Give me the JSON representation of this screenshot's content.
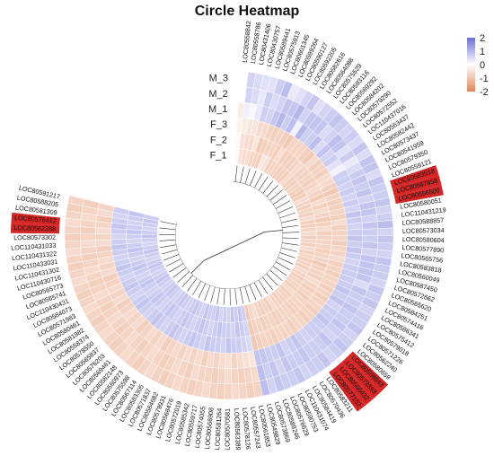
{
  "chart_data": {
    "type": "heatmap",
    "layout": "circular",
    "title": "Circle Heatmap",
    "rows": [
      "M_3",
      "M_2",
      "M_1",
      "F_3",
      "F_2",
      "F_1"
    ],
    "legend": {
      "ticks": [
        "2",
        "1",
        "0",
        "-1",
        "-2"
      ],
      "min": -2,
      "max": 2,
      "color_low": "#e0865a",
      "color_mid": "#ffffff",
      "color_high": "#6b6fd6",
      "placement": "top-right"
    },
    "highlight_color": "#cc0000",
    "columns": [
      {
        "label": "LOC80558842",
        "values": [
          0.0,
          0.0,
          -0.3,
          -0.2,
          -0.1,
          -0.1
        ]
      },
      {
        "label": "LOC80558786",
        "values": [
          0.6,
          0.6,
          0.2,
          -0.3,
          -0.5,
          -0.5
        ]
      },
      {
        "label": "LOC80431406",
        "values": [
          0.5,
          0.5,
          0.1,
          -0.4,
          -0.6,
          -0.6
        ]
      },
      {
        "label": "LOC80430757",
        "values": [
          0.4,
          0.3,
          0.3,
          -0.4,
          -0.6,
          -0.6
        ]
      },
      {
        "label": "LOC80589441",
        "values": [
          0.4,
          0.7,
          0.7,
          -0.6,
          -0.4,
          -0.7
        ]
      },
      {
        "label": "LOC80575813",
        "values": [
          0.7,
          0.5,
          0.6,
          -0.6,
          -0.9,
          -0.7
        ]
      },
      {
        "label": "LOC80601345",
        "values": [
          0.9,
          0.6,
          0.8,
          -0.7,
          -0.8,
          -0.8
        ]
      },
      {
        "label": "LOC80599264",
        "values": [
          0.3,
          0.8,
          1.0,
          -0.8,
          -0.7,
          -0.4
        ]
      },
      {
        "label": "LOC80590127",
        "values": [
          0.4,
          0.8,
          0.7,
          -0.7,
          -0.7,
          -0.5
        ]
      },
      {
        "label": "LOC80592205",
        "values": [
          0.6,
          1.0,
          0.9,
          -0.8,
          -0.8,
          -0.8
        ]
      },
      {
        "label": "LOC80582616",
        "values": [
          0.8,
          0.6,
          0.2,
          -0.9,
          -0.6,
          -0.7
        ]
      },
      {
        "label": "LOC80564088",
        "values": [
          0.4,
          0.8,
          1.0,
          -0.7,
          -0.8,
          -0.7
        ]
      },
      {
        "label": "LOC80575529",
        "values": [
          0.6,
          0.8,
          0.7,
          -0.7,
          -0.8,
          -0.8
        ]
      },
      {
        "label": "LOC80593116",
        "values": [
          0.7,
          0.8,
          0.7,
          -0.7,
          -0.8,
          -0.8
        ]
      },
      {
        "label": "LOC80569292",
        "values": [
          0.8,
          0.5,
          0.9,
          -0.8,
          -0.7,
          -0.8
        ]
      },
      {
        "label": "LOC80584202",
        "values": [
          0.7,
          0.6,
          0.5,
          -0.9,
          -0.6,
          -0.6
        ]
      },
      {
        "label": "LOC80579290",
        "values": [
          0.6,
          0.9,
          0.8,
          -0.6,
          -0.7,
          -0.8
        ]
      },
      {
        "label": "LOC80572552",
        "values": [
          0.7,
          0.8,
          0.6,
          -0.8,
          -0.7,
          -0.8
        ]
      },
      {
        "label": "LOC110437016",
        "values": [
          0.5,
          0.4,
          0.7,
          -0.7,
          -0.7,
          -0.7
        ]
      },
      {
        "label": "LOC80563437",
        "values": [
          0.8,
          0.7,
          0.4,
          -0.8,
          -0.8,
          -0.8
        ]
      },
      {
        "label": "LOC80582442",
        "values": [
          0.5,
          0.3,
          0.2,
          -0.6,
          -0.7,
          -0.9
        ]
      },
      {
        "label": "LOC80573437",
        "values": [
          0.8,
          0.5,
          0.7,
          -0.6,
          -0.6,
          -0.8
        ]
      },
      {
        "label": "LOC80541959",
        "values": [
          0.8,
          0.7,
          0.7,
          -0.8,
          -0.7,
          -0.6
        ]
      },
      {
        "label": "LOC80579350",
        "values": [
          0.5,
          0.8,
          0.6,
          -0.9,
          -0.9,
          -0.7
        ]
      },
      {
        "label": "LOC80559121",
        "values": [
          0.8,
          0.7,
          0.7,
          -0.7,
          -0.6,
          -0.8
        ]
      },
      {
        "label": "LOC80583518",
        "values": [
          0.7,
          0.8,
          0.6,
          -0.8,
          -0.8,
          -0.7
        ],
        "highlight": true
      },
      {
        "label": "LOC80567658",
        "values": [
          0.7,
          0.6,
          0.7,
          -0.8,
          -0.6,
          -0.8
        ],
        "highlight": true
      },
      {
        "label": "LOC80556500",
        "values": [
          0.8,
          0.8,
          0.6,
          -0.7,
          -0.7,
          -0.6
        ],
        "highlight": true
      },
      {
        "label": "LOC80580051",
        "values": [
          0.6,
          0.8,
          0.8,
          -0.8,
          -0.9,
          -0.8
        ]
      },
      {
        "label": "LOC110431219",
        "values": [
          0.7,
          0.6,
          0.7,
          -0.6,
          -0.8,
          -0.8
        ]
      },
      {
        "label": "LOC80588857",
        "values": [
          0.9,
          0.8,
          0.6,
          -0.8,
          -0.6,
          -0.7
        ]
      },
      {
        "label": "LOC80573034",
        "values": [
          0.6,
          0.7,
          0.7,
          -0.7,
          -0.8,
          -0.6
        ]
      },
      {
        "label": "LOC80580604",
        "values": [
          0.8,
          0.7,
          0.8,
          -0.7,
          -0.7,
          -0.8
        ]
      },
      {
        "label": "LOC80577890",
        "values": [
          0.7,
          0.8,
          0.7,
          -0.8,
          -0.7,
          -0.7
        ]
      },
      {
        "label": "LOC80565756",
        "values": [
          0.6,
          0.6,
          0.8,
          -0.7,
          -0.7,
          -0.8
        ]
      },
      {
        "label": "LOC80583818",
        "values": [
          0.8,
          0.8,
          0.7,
          -0.7,
          -0.8,
          -0.6
        ]
      },
      {
        "label": "LOC80560049",
        "values": [
          0.7,
          0.8,
          0.6,
          -0.6,
          -0.7,
          -0.8
        ]
      },
      {
        "label": "LOC80587450",
        "values": [
          0.7,
          0.8,
          0.7,
          -0.8,
          -0.7,
          -0.7
        ]
      },
      {
        "label": "LOC80572662",
        "values": [
          0.6,
          0.8,
          0.7,
          -0.7,
          -0.9,
          -0.8
        ]
      },
      {
        "label": "LOC80565620",
        "values": [
          0.8,
          0.5,
          0.7,
          -0.8,
          -0.7,
          -0.7
        ]
      },
      {
        "label": "LOC80584251",
        "values": [
          0.7,
          0.8,
          0.7,
          -0.7,
          -0.7,
          -0.8
        ]
      },
      {
        "label": "LOC80574416",
        "values": [
          0.8,
          0.7,
          0.8,
          -0.7,
          -0.8,
          -0.6
        ]
      },
      {
        "label": "LOC80586341",
        "values": [
          0.6,
          0.7,
          0.7,
          -0.8,
          -0.6,
          -0.7
        ]
      },
      {
        "label": "LOC80575412",
        "values": [
          0.7,
          0.8,
          0.8,
          -0.7,
          -0.7,
          -0.8
        ]
      },
      {
        "label": "LOC80579018",
        "values": [
          0.7,
          0.7,
          0.6,
          -0.8,
          -0.8,
          -0.7
        ]
      },
      {
        "label": "LOC80571226",
        "values": [
          0.8,
          0.7,
          0.7,
          -0.7,
          -0.7,
          -0.7
        ]
      },
      {
        "label": "LOC80562240",
        "values": [
          0.6,
          0.8,
          0.7,
          -0.7,
          -0.8,
          -0.8
        ]
      },
      {
        "label": "LOC80580659",
        "values": [
          0.7,
          0.7,
          0.8,
          -0.8,
          -0.7,
          -0.6
        ]
      },
      {
        "label": "LOC80568843",
        "values": [
          0.8,
          0.6,
          0.7,
          -0.7,
          -0.7,
          -0.8
        ],
        "highlight": true
      },
      {
        "label": "LOC80573893",
        "values": [
          0.7,
          0.8,
          0.7,
          -0.8,
          -0.7,
          -0.7
        ],
        "highlight": true
      },
      {
        "label": "LOC80566432",
        "values": [
          0.6,
          0.7,
          0.7,
          -0.7,
          -0.8,
          -0.7
        ],
        "highlight": true
      },
      {
        "label": "LOC80577152",
        "values": [
          0.8,
          0.7,
          0.6,
          -0.7,
          -0.7,
          -0.8
        ],
        "highlight": true
      },
      {
        "label": "LOC80583211",
        "values": [
          0.7,
          0.7,
          0.7,
          -0.8,
          -0.7,
          -0.7
        ]
      },
      {
        "label": "LOC80570436",
        "values": [
          0.7,
          0.8,
          0.8,
          -0.7,
          -0.7,
          -0.6
        ]
      },
      {
        "label": "LOC80584419",
        "values": [
          0.6,
          0.7,
          0.7,
          -0.7,
          -0.8,
          -0.8
        ]
      },
      {
        "label": "LOC110431074",
        "values": [
          0.8,
          0.7,
          0.6,
          -0.7,
          -0.7,
          -0.7
        ]
      },
      {
        "label": "LOC80590753",
        "values": [
          0.7,
          0.8,
          0.8,
          -0.8,
          -0.7,
          -0.8
        ]
      },
      {
        "label": "LOC80576629",
        "values": [
          0.7,
          0.6,
          0.7,
          -0.7,
          -0.8,
          -0.7
        ]
      },
      {
        "label": "LOC80589246",
        "values": [
          0.8,
          0.8,
          0.7,
          -0.7,
          -0.7,
          -0.6
        ]
      },
      {
        "label": "LOC80573869",
        "values": [
          0.6,
          0.7,
          0.8,
          -0.8,
          -0.7,
          -0.7
        ]
      },
      {
        "label": "LOC80549829",
        "values": [
          0.9,
          0.9,
          0.8,
          -0.9,
          -0.9,
          -0.9
        ]
      },
      {
        "label": "LOC80561853",
        "values": [
          -0.7,
          -0.6,
          -0.4,
          0.5,
          0.6,
          0.7
        ]
      },
      {
        "label": "LOC80557243",
        "values": [
          -0.8,
          -0.7,
          -0.5,
          0.6,
          0.7,
          0.8
        ]
      },
      {
        "label": "LOC80578126",
        "values": [
          -0.7,
          -0.8,
          -0.6,
          0.7,
          0.8,
          0.7
        ]
      },
      {
        "label": "LOC80563389",
        "values": [
          -0.6,
          -0.7,
          -0.7,
          0.7,
          0.6,
          0.8
        ]
      },
      {
        "label": "LOC80570581",
        "values": [
          -0.7,
          -0.6,
          -0.5,
          0.8,
          0.7,
          0.6
        ]
      },
      {
        "label": "LOC80581264",
        "values": [
          -0.8,
          -0.7,
          -0.6,
          0.6,
          0.7,
          0.7
        ]
      },
      {
        "label": "LOC80566908",
        "values": [
          -0.7,
          -0.8,
          -0.7,
          0.7,
          0.8,
          0.6
        ]
      },
      {
        "label": "LOC80574055",
        "values": [
          -0.6,
          -0.7,
          -0.6,
          0.7,
          0.7,
          0.8
        ]
      },
      {
        "label": "LOC80559717",
        "values": [
          -0.7,
          -0.7,
          -0.8,
          0.8,
          0.6,
          0.7
        ]
      },
      {
        "label": "LOC80585342",
        "values": [
          -0.8,
          -0.6,
          -0.6,
          0.6,
          0.7,
          0.7
        ]
      },
      {
        "label": "LOC80572019",
        "values": [
          -0.7,
          -0.8,
          -0.7,
          0.7,
          0.8,
          0.8
        ]
      },
      {
        "label": "LOC80568476",
        "values": [
          -0.6,
          -0.7,
          -0.6,
          0.8,
          0.7,
          0.6
        ]
      },
      {
        "label": "LOC80579931",
        "values": [
          -0.7,
          -0.6,
          -0.7,
          0.7,
          0.6,
          0.7
        ]
      },
      {
        "label": "LOC80564682",
        "values": [
          -0.8,
          -0.7,
          -0.6,
          0.6,
          0.7,
          0.8
        ]
      },
      {
        "label": "LOC80571837",
        "values": [
          -0.7,
          -0.8,
          -0.7,
          0.7,
          0.8,
          0.7
        ]
      },
      {
        "label": "LOC80583305",
        "values": [
          -0.6,
          -0.7,
          -0.8,
          0.8,
          0.7,
          0.6
        ]
      },
      {
        "label": "LOC80567114",
        "values": [
          -0.7,
          -0.6,
          -0.6,
          0.7,
          0.6,
          0.7
        ]
      },
      {
        "label": "LOC80575598",
        "values": [
          -0.8,
          -0.7,
          -0.7,
          0.6,
          0.7,
          0.8
        ]
      },
      {
        "label": "LOC80560973",
        "values": [
          -0.7,
          -0.8,
          -0.6,
          0.7,
          0.8,
          0.7
        ]
      },
      {
        "label": "LOC80582148",
        "values": [
          -0.6,
          -0.7,
          -0.7,
          0.8,
          0.7,
          0.6
        ]
      },
      {
        "label": "LOC80569461",
        "values": [
          -0.7,
          -0.6,
          -0.8,
          0.7,
          0.6,
          0.7
        ]
      },
      {
        "label": "LOC80576203",
        "values": [
          -0.8,
          -0.7,
          -0.6,
          0.6,
          0.7,
          0.8
        ]
      },
      {
        "label": "LOC80565837",
        "values": [
          -0.7,
          -0.8,
          -0.7,
          0.7,
          0.8,
          0.7
        ]
      },
      {
        "label": "LOC80578550",
        "values": [
          -0.6,
          -0.7,
          -0.6,
          0.8,
          0.7,
          0.6
        ]
      },
      {
        "label": "LOC80558374",
        "values": [
          -0.7,
          -0.6,
          -0.7,
          0.7,
          0.6,
          0.7
        ]
      },
      {
        "label": "LOC80581982",
        "values": [
          -0.8,
          -0.7,
          -0.8,
          0.6,
          0.7,
          0.8
        ]
      },
      {
        "label": "LOC80580461",
        "values": [
          -0.7,
          -0.8,
          -0.6,
          0.7,
          0.8,
          0.7
        ]
      },
      {
        "label": "LOC80571983",
        "values": [
          -0.6,
          -0.7,
          -0.7,
          0.8,
          0.7,
          0.6
        ]
      },
      {
        "label": "LOC80584073",
        "values": [
          -0.7,
          -0.6,
          -0.6,
          0.7,
          0.6,
          0.7
        ]
      },
      {
        "label": "LOC110430431",
        "values": [
          -0.8,
          -0.7,
          -0.7,
          0.6,
          0.7,
          0.8
        ]
      },
      {
        "label": "LOC80565741",
        "values": [
          -0.7,
          -0.8,
          -0.8,
          0.7,
          0.8,
          0.7
        ]
      },
      {
        "label": "LOC80565773",
        "values": [
          -0.6,
          -0.7,
          -0.6,
          0.8,
          0.7,
          0.6
        ]
      },
      {
        "label": "LOC110430716",
        "values": [
          -0.7,
          -0.6,
          -0.7,
          0.7,
          0.6,
          0.7
        ]
      },
      {
        "label": "LOC110431302",
        "values": [
          -0.8,
          -0.7,
          -0.6,
          0.6,
          0.7,
          0.8
        ]
      },
      {
        "label": "LOC110433031",
        "values": [
          -0.7,
          -0.8,
          -0.7,
          0.7,
          0.8,
          0.7
        ]
      },
      {
        "label": "LOC110431322",
        "values": [
          -0.6,
          -0.7,
          -0.8,
          0.8,
          0.7,
          0.6
        ]
      },
      {
        "label": "LOC110431033",
        "values": [
          -0.7,
          -0.6,
          -0.6,
          0.7,
          0.6,
          0.7
        ]
      },
      {
        "label": "LOC80573302",
        "values": [
          -0.8,
          -0.7,
          -0.7,
          0.6,
          0.7,
          0.8
        ]
      },
      {
        "label": "LOC80562288",
        "values": [
          -0.7,
          -0.8,
          -0.6,
          0.7,
          0.8,
          0.7
        ],
        "highlight": true
      },
      {
        "label": "LOC80576412",
        "values": [
          -0.6,
          -0.7,
          -0.7,
          0.8,
          0.7,
          0.6
        ],
        "highlight": true
      },
      {
        "label": "LOC80581309",
        "values": [
          -0.7,
          -0.6,
          -0.8,
          0.7,
          0.6,
          0.7
        ]
      },
      {
        "label": "LOC80588205",
        "values": [
          -0.8,
          -0.7,
          -0.6,
          0.6,
          0.7,
          0.8
        ]
      },
      {
        "label": "LOC80591217",
        "values": [
          -0.7,
          -0.8,
          -0.7,
          0.7,
          0.8,
          0.7
        ]
      }
    ]
  }
}
